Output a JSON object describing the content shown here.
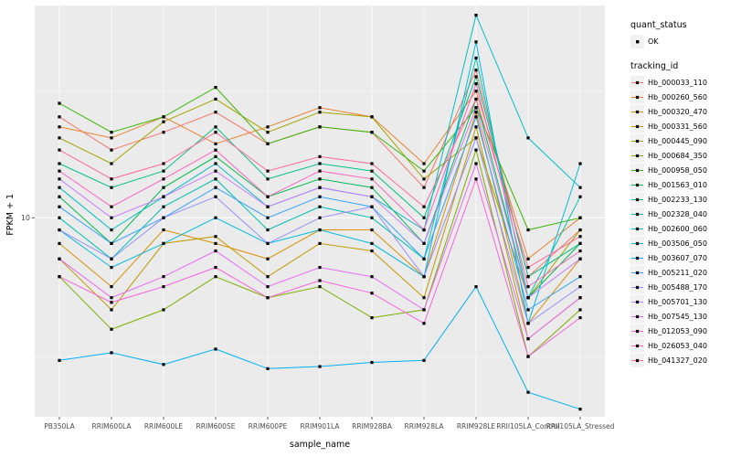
{
  "chart_data": {
    "type": "line",
    "title": "",
    "xlabel": "sample_name",
    "ylabel": "FPKM + 1",
    "y_scale": "log10",
    "y_range_log10": [
      0.25,
      1.8
    ],
    "y_ticks": [
      {
        "value": 10,
        "label": "10"
      }
    ],
    "minor_gridlines": [
      3,
      30
    ],
    "panel_bg": "#EBEBEB",
    "gridline_color": "#FFFFFF",
    "point_color": "#000000",
    "categories": [
      "PB350LA",
      "RRIM600LA",
      "RRIM600LE",
      "RRIM600SE",
      "RRIM600PE",
      "RRIM901LA",
      "RRIM928BA",
      "RRIM928LA",
      "RRIM928LE",
      "RRII105LA_Control",
      "RRII105LA_Stressed"
    ],
    "series": [
      {
        "name": "Hb_000033_110",
        "color": "#F8766D",
        "values": [
          24,
          18,
          21,
          25,
          19,
          22,
          21,
          13,
          36,
          6,
          9
        ]
      },
      {
        "name": "Hb_000260_560",
        "color": "#EA8331",
        "values": [
          22,
          20,
          24,
          19,
          22,
          26,
          24,
          16,
          30,
          7,
          10
        ]
      },
      {
        "name": "Hb_000320_470",
        "color": "#D89000",
        "values": [
          8,
          5.5,
          9,
          8,
          7,
          9,
          9,
          6,
          25,
          4,
          7
        ]
      },
      {
        "name": "Hb_000331_560",
        "color": "#C09B00",
        "values": [
          7,
          4.5,
          8,
          8.5,
          6,
          8,
          7.5,
          5,
          22,
          3.5,
          5
        ]
      },
      {
        "name": "Hb_000445_090",
        "color": "#A3A500",
        "values": [
          20,
          16,
          23,
          28,
          21,
          25,
          24,
          14,
          20,
          5,
          9
        ]
      },
      {
        "name": "Hb_000684_350",
        "color": "#7CAE00",
        "values": [
          6,
          3.8,
          4.5,
          6,
          5,
          5.5,
          4.2,
          4.5,
          18,
          3,
          4.5
        ]
      },
      {
        "name": "Hb_000958_050",
        "color": "#39B600",
        "values": [
          27,
          21,
          24,
          31,
          19,
          22,
          21,
          15,
          26,
          9,
          10
        ]
      },
      {
        "name": "Hb_001563_010",
        "color": "#00BB4E",
        "values": [
          12,
          8,
          13,
          17,
          12,
          14,
          13,
          8,
          28,
          5,
          8
        ]
      },
      {
        "name": "Hb_002233_130",
        "color": "#00C087",
        "values": [
          16,
          13,
          15,
          22,
          14,
          16,
          15,
          10,
          34,
          6,
          8
        ]
      },
      {
        "name": "Hb_002328_040",
        "color": "#00C0AF",
        "values": [
          10,
          7,
          11,
          14,
          9,
          11,
          10,
          7,
          40,
          5,
          12
        ]
      },
      {
        "name": "Hb_002600_060",
        "color": "#00BFC4",
        "values": [
          13,
          9,
          12,
          16,
          11,
          13,
          12,
          9,
          58,
          20,
          13
        ]
      },
      {
        "name": "Hb_003506_050",
        "color": "#00BAE0",
        "values": [
          9,
          6.5,
          8,
          10,
          8,
          9,
          8,
          6,
          46,
          4,
          16
        ]
      },
      {
        "name": "Hb_003607_070",
        "color": "#00B0F6",
        "values": [
          2.9,
          3.1,
          2.8,
          3.2,
          2.7,
          2.75,
          2.85,
          2.9,
          5.5,
          2.2,
          1.9
        ]
      },
      {
        "name": "Hb_005211_020",
        "color": "#35A2FF",
        "values": [
          11,
          8,
          10,
          13,
          10,
          12,
          11,
          7,
          24,
          4.5,
          6
        ]
      },
      {
        "name": "Hb_005488_170",
        "color": "#9590FF",
        "values": [
          9,
          7,
          10,
          12,
          8,
          10,
          11,
          6,
          20,
          4,
          5.5
        ]
      },
      {
        "name": "Hb_005701_130",
        "color": "#C77CFF",
        "values": [
          14,
          10,
          12,
          15,
          11,
          13,
          12,
          8,
          26,
          5,
          7
        ]
      },
      {
        "name": "Hb_007545_130",
        "color": "#E76BF3",
        "values": [
          7,
          5,
          6,
          7.5,
          5.5,
          6.5,
          6,
          4.5,
          16,
          3.5,
          5
        ]
      },
      {
        "name": "Hb_012053_090",
        "color": "#FA62DB",
        "values": [
          6,
          4.8,
          5.5,
          6.5,
          5,
          5.8,
          5.2,
          4,
          14,
          3,
          4.2
        ]
      },
      {
        "name": "Hb_026053_040",
        "color": "#FF62BC",
        "values": [
          15,
          11,
          14,
          18,
          12,
          15,
          14,
          9,
          32,
          5.5,
          7.5
        ]
      },
      {
        "name": "Hb_041327_020",
        "color": "#FF6A98",
        "values": [
          18,
          14,
          16,
          21,
          15,
          17,
          16,
          11,
          28,
          6.5,
          8.5
        ]
      }
    ],
    "legend": {
      "quant_title": "quant_status",
      "quant_items": [
        {
          "label": "OK",
          "marker": "black-point"
        }
      ],
      "color_title": "tracking_id"
    }
  }
}
